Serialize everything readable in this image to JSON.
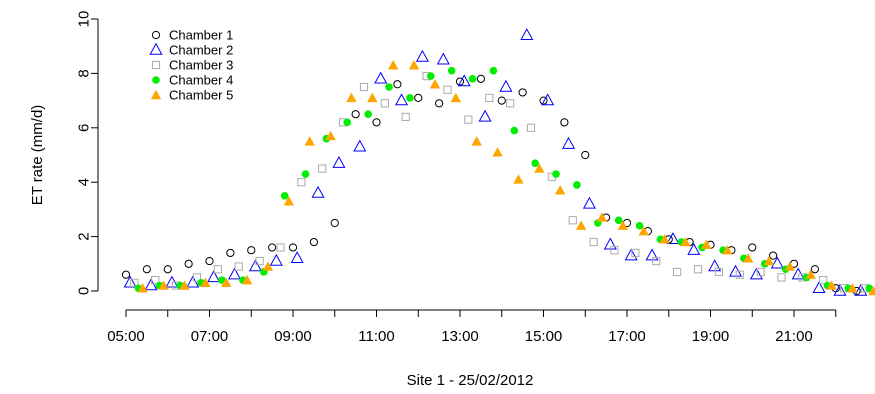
{
  "chart_data": {
    "type": "scatter",
    "title": "",
    "xlabel": "Site 1 - 25/02/2012",
    "ylabel": "ET rate (mm/d)",
    "xlim": [
      5.0,
      22.7
    ],
    "ylim": [
      -0.3,
      10.2
    ],
    "x_ticks": [
      5,
      7,
      9,
      11,
      13,
      15,
      17,
      19,
      21
    ],
    "x_minor_ticks": [
      6,
      8,
      10,
      12,
      14,
      16,
      18,
      20,
      22
    ],
    "x_tick_labels": [
      "05:00",
      "07:00",
      "09:00",
      "11:00",
      "13:00",
      "15:00",
      "17:00",
      "19:00",
      "21:00"
    ],
    "y_ticks": [
      0,
      2,
      4,
      6,
      8,
      10
    ],
    "grid": false,
    "legend_position": "top-left",
    "series": [
      {
        "name": "Chamber 1",
        "marker": "circle-open",
        "color": "#000000",
        "points": [
          [
            5.0,
            0.6
          ],
          [
            5.5,
            0.8
          ],
          [
            6.0,
            0.8
          ],
          [
            6.5,
            1.0
          ],
          [
            7.0,
            1.1
          ],
          [
            7.5,
            1.4
          ],
          [
            8.0,
            1.5
          ],
          [
            8.5,
            1.6
          ],
          [
            9.0,
            1.6
          ],
          [
            9.5,
            1.8
          ],
          [
            10.0,
            2.5
          ],
          [
            10.5,
            6.5
          ],
          [
            11.0,
            6.2
          ],
          [
            11.5,
            7.6
          ],
          [
            12.0,
            7.1
          ],
          [
            12.5,
            6.9
          ],
          [
            13.0,
            7.7
          ],
          [
            13.5,
            7.8
          ],
          [
            14.0,
            7.0
          ],
          [
            14.5,
            7.3
          ],
          [
            15.0,
            7.0
          ],
          [
            15.5,
            6.2
          ],
          [
            16.0,
            5.0
          ],
          [
            16.5,
            2.7
          ],
          [
            17.0,
            2.5
          ],
          [
            17.5,
            2.2
          ],
          [
            18.0,
            1.9
          ],
          [
            18.5,
            1.8
          ],
          [
            19.0,
            1.7
          ],
          [
            19.5,
            1.5
          ],
          [
            20.0,
            1.6
          ],
          [
            20.5,
            1.3
          ],
          [
            21.0,
            1.0
          ],
          [
            21.5,
            0.8
          ],
          [
            22.0,
            0.1
          ],
          [
            22.5,
            0.0
          ]
        ]
      },
      {
        "name": "Chamber 2",
        "marker": "triangle-open",
        "color": "#0000ff",
        "points": [
          [
            5.1,
            0.3
          ],
          [
            5.6,
            0.2
          ],
          [
            6.1,
            0.3
          ],
          [
            6.6,
            0.3
          ],
          [
            7.1,
            0.5
          ],
          [
            7.6,
            0.6
          ],
          [
            8.1,
            0.9
          ],
          [
            8.6,
            1.1
          ],
          [
            9.1,
            1.2
          ],
          [
            9.6,
            3.6
          ],
          [
            10.1,
            4.7
          ],
          [
            10.6,
            5.3
          ],
          [
            11.1,
            7.8
          ],
          [
            11.6,
            7.0
          ],
          [
            12.1,
            8.6
          ],
          [
            12.6,
            8.5
          ],
          [
            13.1,
            7.7
          ],
          [
            13.6,
            6.4
          ],
          [
            14.1,
            7.5
          ],
          [
            14.6,
            9.4
          ],
          [
            15.1,
            7.0
          ],
          [
            15.6,
            5.4
          ],
          [
            16.1,
            3.2
          ],
          [
            16.6,
            1.7
          ],
          [
            17.1,
            1.3
          ],
          [
            17.6,
            1.3
          ],
          [
            18.1,
            1.9
          ],
          [
            18.6,
            1.5
          ],
          [
            19.1,
            0.9
          ],
          [
            19.6,
            0.7
          ],
          [
            20.1,
            0.6
          ],
          [
            20.6,
            1.0
          ],
          [
            21.1,
            0.6
          ],
          [
            21.6,
            0.1
          ],
          [
            22.1,
            0.0
          ],
          [
            22.6,
            0.0
          ]
        ]
      },
      {
        "name": "Chamber 3",
        "marker": "square-open",
        "color": "#aaaaaa",
        "points": [
          [
            5.2,
            0.3
          ],
          [
            5.7,
            0.4
          ],
          [
            6.2,
            0.2
          ],
          [
            6.7,
            0.5
          ],
          [
            7.2,
            0.8
          ],
          [
            7.7,
            0.9
          ],
          [
            8.2,
            1.1
          ],
          [
            8.7,
            1.6
          ],
          [
            9.2,
            4.0
          ],
          [
            9.7,
            4.5
          ],
          [
            10.2,
            6.2
          ],
          [
            10.7,
            7.5
          ],
          [
            11.2,
            6.9
          ],
          [
            11.7,
            6.4
          ],
          [
            12.2,
            7.9
          ],
          [
            12.7,
            7.4
          ],
          [
            13.2,
            6.3
          ],
          [
            13.7,
            7.1
          ],
          [
            14.2,
            6.9
          ],
          [
            14.7,
            6.0
          ],
          [
            15.2,
            4.2
          ],
          [
            15.7,
            2.6
          ],
          [
            16.2,
            1.8
          ],
          [
            16.7,
            1.5
          ],
          [
            17.2,
            1.4
          ],
          [
            17.7,
            1.1
          ],
          [
            18.2,
            0.7
          ],
          [
            18.7,
            0.8
          ],
          [
            19.2,
            0.7
          ],
          [
            19.7,
            0.6
          ],
          [
            20.2,
            0.7
          ],
          [
            20.7,
            0.5
          ],
          [
            21.2,
            0.5
          ],
          [
            21.7,
            0.4
          ],
          [
            22.2,
            0.1
          ],
          [
            22.7,
            0.1
          ]
        ]
      },
      {
        "name": "Chamber 4",
        "marker": "circle-filled",
        "color": "#00ee00",
        "points": [
          [
            5.3,
            0.1
          ],
          [
            5.8,
            0.2
          ],
          [
            6.3,
            0.2
          ],
          [
            6.8,
            0.3
          ],
          [
            7.3,
            0.4
          ],
          [
            7.8,
            0.4
          ],
          [
            8.3,
            0.7
          ],
          [
            8.8,
            3.5
          ],
          [
            9.3,
            4.3
          ],
          [
            9.8,
            5.6
          ],
          [
            10.3,
            6.2
          ],
          [
            10.8,
            6.5
          ],
          [
            11.3,
            7.5
          ],
          [
            11.8,
            7.1
          ],
          [
            12.3,
            7.9
          ],
          [
            12.8,
            8.1
          ],
          [
            13.3,
            7.8
          ],
          [
            13.8,
            8.1
          ],
          [
            14.3,
            5.9
          ],
          [
            14.8,
            4.7
          ],
          [
            15.3,
            4.3
          ],
          [
            15.8,
            3.9
          ],
          [
            16.3,
            2.5
          ],
          [
            16.8,
            2.6
          ],
          [
            17.3,
            2.4
          ],
          [
            17.8,
            1.9
          ],
          [
            18.3,
            1.8
          ],
          [
            18.8,
            1.6
          ],
          [
            19.3,
            1.5
          ],
          [
            19.8,
            1.2
          ],
          [
            20.3,
            1.0
          ],
          [
            20.8,
            0.8
          ],
          [
            21.3,
            0.5
          ],
          [
            21.8,
            0.2
          ],
          [
            22.3,
            0.1
          ],
          [
            22.8,
            0.1
          ]
        ]
      },
      {
        "name": "Chamber 5",
        "marker": "triangle-filled",
        "color": "#ffa500",
        "points": [
          [
            5.4,
            0.1
          ],
          [
            5.9,
            0.2
          ],
          [
            6.4,
            0.2
          ],
          [
            6.9,
            0.3
          ],
          [
            7.4,
            0.3
          ],
          [
            7.9,
            0.4
          ],
          [
            8.4,
            0.9
          ],
          [
            8.9,
            3.3
          ],
          [
            9.4,
            5.5
          ],
          [
            9.9,
            5.7
          ],
          [
            10.4,
            7.1
          ],
          [
            10.9,
            7.1
          ],
          [
            11.4,
            8.3
          ],
          [
            11.9,
            8.3
          ],
          [
            12.4,
            7.6
          ],
          [
            12.9,
            7.1
          ],
          [
            13.4,
            5.5
          ],
          [
            13.9,
            5.1
          ],
          [
            14.4,
            4.1
          ],
          [
            14.9,
            4.5
          ],
          [
            15.4,
            3.7
          ],
          [
            15.9,
            2.4
          ],
          [
            16.4,
            2.7
          ],
          [
            16.9,
            2.4
          ],
          [
            17.4,
            2.2
          ],
          [
            17.9,
            1.9
          ],
          [
            18.4,
            1.8
          ],
          [
            18.9,
            1.7
          ],
          [
            19.4,
            1.5
          ],
          [
            19.9,
            1.2
          ],
          [
            20.4,
            1.1
          ],
          [
            20.9,
            0.9
          ],
          [
            21.4,
            0.6
          ],
          [
            21.9,
            0.2
          ],
          [
            22.4,
            0.1
          ],
          [
            22.9,
            0.0
          ]
        ]
      }
    ]
  }
}
